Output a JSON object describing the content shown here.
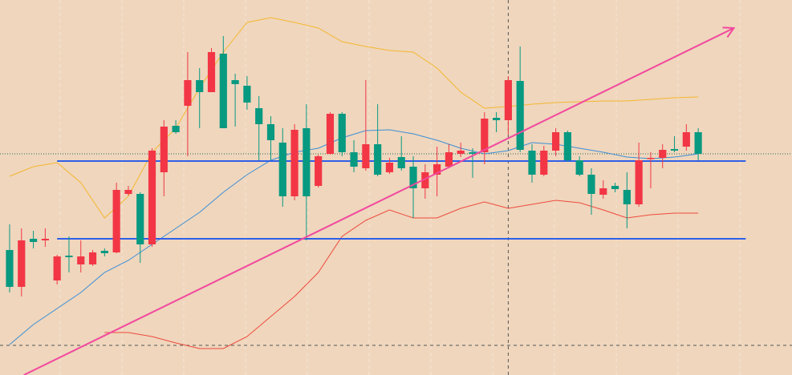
{
  "chart_data": {
    "type": "candlestick",
    "background": "#efd6bd",
    "xlim": [
      -0.81,
      65.9
    ],
    "ylim": [
      0,
      468
    ],
    "up_color": "#089981",
    "down_color": "#f23645",
    "open": [
      110,
      168,
      166,
      170,
      148,
      147,
      148,
      153,
      152,
      231,
      231,
      163,
      280,
      310,
      303,
      368,
      353,
      403,
      308,
      363,
      340,
      313,
      293,
      223,
      306,
      223,
      273,
      326,
      278,
      260,
      288,
      250,
      265,
      258,
      233,
      253,
      263,
      278,
      280,
      276,
      320,
      318,
      368,
      281,
      250,
      280,
      303,
      268,
      250,
      226,
      233,
      232,
      213,
      268,
      271,
      281,
      280,
      303,
      276
    ],
    "high": [
      188,
      183,
      180,
      183,
      150,
      173,
      168,
      156,
      158,
      240,
      236,
      228,
      283,
      318,
      318,
      403,
      383,
      408,
      423,
      376,
      373,
      348,
      323,
      308,
      313,
      338,
      275,
      328,
      328,
      293,
      368,
      338,
      271,
      298,
      273,
      263,
      285,
      288,
      290,
      283,
      328,
      328,
      373,
      410,
      288,
      286,
      308,
      305,
      273,
      258,
      243,
      240,
      253,
      290,
      278,
      288,
      298,
      313,
      308
    ],
    "low": [
      103,
      98,
      158,
      160,
      113,
      128,
      128,
      136,
      148,
      152,
      224,
      140,
      160,
      223,
      301,
      273,
      308,
      353,
      308,
      310,
      331,
      268,
      268,
      210,
      218,
      168,
      234,
      275,
      273,
      253,
      255,
      248,
      251,
      255,
      196,
      220,
      223,
      258,
      272,
      246,
      263,
      303,
      300,
      278,
      240,
      248,
      273,
      266,
      248,
      200,
      220,
      228,
      183,
      210,
      233,
      258,
      278,
      280,
      268
    ],
    "close": [
      156,
      110,
      170,
      168,
      118,
      149,
      138,
      138,
      155,
      153,
      226,
      226,
      163,
      253,
      311,
      336,
      368,
      353,
      401,
      368,
      361,
      333,
      313,
      290,
      223,
      308,
      236,
      276,
      326,
      278,
      258,
      288,
      253,
      272,
      260,
      233,
      250,
      260,
      276,
      278,
      278,
      321,
      318,
      367,
      280,
      250,
      280,
      303,
      268,
      250,
      225,
      236,
      231,
      213,
      270,
      271,
      282,
      285,
      303
    ],
    "lines": [
      {
        "color": "#f5b72e",
        "x": [
          0,
          2,
          4,
          6,
          8,
          10,
          12,
          14,
          16,
          18,
          20,
          22,
          24,
          26,
          28,
          30,
          32,
          34,
          36,
          38,
          40,
          42,
          44,
          46,
          48,
          50,
          52,
          54,
          56,
          58
        ],
        "values": [
          248,
          260,
          265,
          240,
          196,
          223,
          278,
          308,
          358,
          403,
          440,
          446,
          440,
          433,
          416,
          410,
          405,
          403,
          383,
          353,
          333,
          335,
          338,
          340,
          341,
          342,
          342,
          344,
          346,
          347
        ]
      },
      {
        "color": "#3d8fd6",
        "x": [
          0,
          2,
          4,
          6,
          8,
          10,
          12,
          14,
          16,
          18,
          20,
          22,
          24,
          26,
          28,
          30,
          32,
          34,
          36,
          38,
          40,
          42,
          44,
          46,
          48,
          50,
          52,
          54,
          56,
          58
        ],
        "values": [
          38,
          63,
          83,
          103,
          128,
          143,
          163,
          183,
          203,
          228,
          250,
          268,
          278,
          283,
          296,
          305,
          306,
          301,
          293,
          283,
          276,
          280,
          290,
          288,
          283,
          278,
          272,
          270,
          272,
          276
        ]
      },
      {
        "color": "#ef4a3c",
        "x": [
          0,
          2,
          4,
          6,
          8,
          10,
          12,
          14,
          16,
          18,
          20,
          22,
          24,
          26,
          28,
          30,
          32,
          34,
          36,
          38,
          40,
          42,
          44,
          46,
          48,
          50,
          52,
          54,
          56,
          58
        ],
        "values": [
          null,
          null,
          null,
          null,
          53,
          53,
          48,
          40,
          33,
          33,
          48,
          73,
          98,
          128,
          173,
          193,
          206,
          196,
          196,
          208,
          216,
          208,
          213,
          218,
          215,
          206,
          196,
          200,
          202,
          202
        ]
      }
    ],
    "hlines": {
      "color": "#2f5fe8",
      "x": [
        4,
        62
      ],
      "values": [
        267,
        170
      ]
    },
    "price_line": 276,
    "crosshair": {
      "x": 42,
      "value": 37
    },
    "trendline": {
      "color": "#f2489e",
      "x": [
        1.2,
        61
      ],
      "values": [
        0,
        433
      ]
    }
  }
}
